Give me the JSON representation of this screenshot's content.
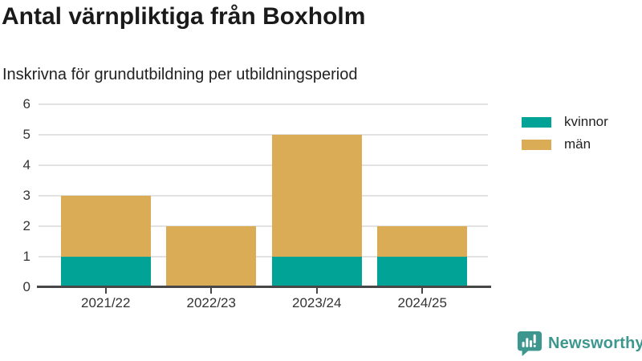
{
  "chart_data": {
    "type": "bar",
    "stacked": true,
    "title": "Antal värnpliktiga från Boxholm",
    "subtitle": "Inskrivna för grundutbildning per utbildningsperiod",
    "categories": [
      "2021/22",
      "2022/23",
      "2023/24",
      "2024/25"
    ],
    "series": [
      {
        "name": "kvinnor",
        "color": "#00A396",
        "values": [
          1,
          0,
          1,
          1
        ]
      },
      {
        "name": "män",
        "color": "#D9AC55",
        "values": [
          2,
          2,
          4,
          1
        ]
      }
    ],
    "totals": [
      3,
      2,
      5,
      2
    ],
    "xlabel": "",
    "ylabel": "",
    "ylim": [
      0,
      6
    ],
    "yticks": [
      0,
      1,
      2,
      3,
      4,
      5,
      6
    ],
    "grid": true,
    "legend_position": "right"
  },
  "branding": {
    "logo_text": "Newsworthy",
    "logo_color": "#3E978F"
  },
  "style": {
    "gridline_color": "#E2E2E2",
    "axis_color": "#474747",
    "text_color": "#333333"
  }
}
